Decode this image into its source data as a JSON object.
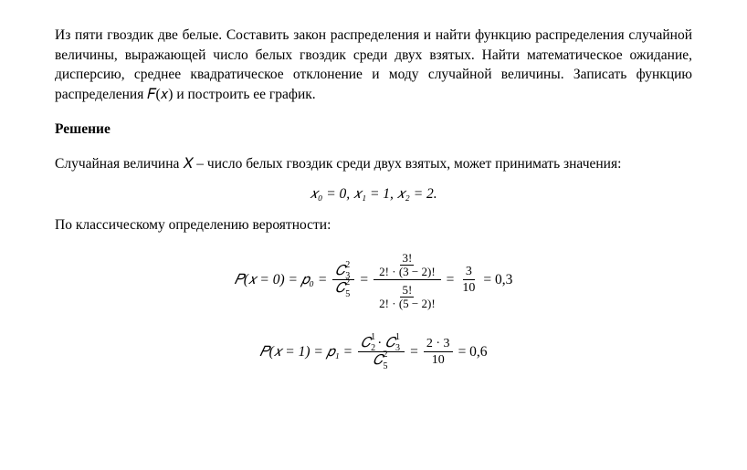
{
  "problem": {
    "text": "Из пяти гвоздик две белые. Составить закон распределения и найти функцию распределения  случайной  величины,  выражающей  число  белых гвоздик среди  двух  взятых.  Найти  математическое  ожидание,  дисперсию, среднее квадратическое отклонение и моду случайной величины. Записать функцию распределения 𝐹(𝑥) и построить ее график."
  },
  "solution": {
    "header": "Решение",
    "intro": "Случайная величина 𝑋 – число белых гвоздик  среди  двух  взятых, может принимать значения:",
    "values_line": "𝑥₀ = 0,   𝑥₁ = 1,   𝑥₂ = 2.",
    "classical_def": "По классическому определению вероятности:",
    "formula1": {
      "lhs": "𝑃(𝑥 = 0) = 𝑝₀ =",
      "result1_num": "3",
      "result1_den": "10",
      "result2": "= 0,3",
      "comb_top1": "2",
      "comb_bot1": "3",
      "comb_top2": "2",
      "comb_bot2": "5",
      "fact_top": "3!",
      "fact_top_den": "2! · (3 − 2)!",
      "fact_bot": "5!",
      "fact_bot_den": "2! · (5 − 2)!"
    },
    "formula2": {
      "lhs": "𝑃(𝑥 = 1) = 𝑝₁ =",
      "comb1_top": "1",
      "comb1_bot": "2",
      "comb2_top": "1",
      "comb2_bot": "3",
      "comb3_top": "2",
      "comb3_bot": "5",
      "mid_num": "2 · 3",
      "mid_den": "10",
      "result": "= 0,6"
    }
  },
  "style": {
    "font_family": "Times New Roman",
    "text_color": "#000000",
    "bg_color": "#ffffff",
    "body_fontsize": 15.5,
    "formula_fontsize": 15.5
  }
}
